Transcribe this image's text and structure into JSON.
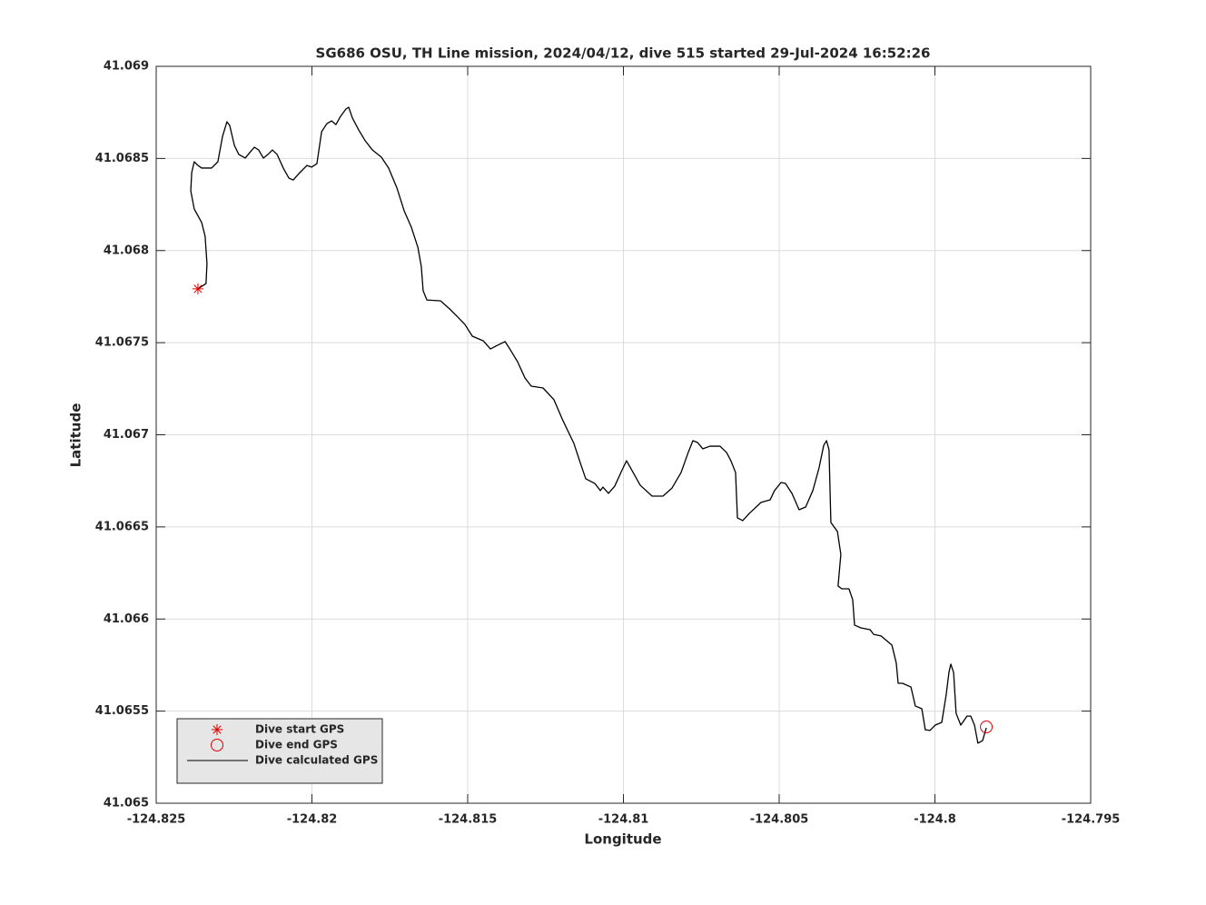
{
  "chart_data": {
    "type": "line",
    "title": "SG686 OSU, TH Line mission, 2024/04/12, dive 515 started 29-Jul-2024 16:52:26",
    "xlabel": "Longitude",
    "ylabel": "Latitude",
    "xlim": [
      -124.825,
      -124.795
    ],
    "xticks": [
      -124.825,
      -124.82,
      -124.815,
      -124.81,
      -124.805,
      -124.8,
      -124.795
    ],
    "ylim": [
      41.065,
      41.069
    ],
    "yticks": [
      41.065,
      41.0655,
      41.066,
      41.0665,
      41.067,
      41.0675,
      41.068,
      41.0685,
      41.069
    ],
    "grid": true,
    "legend": "lower left",
    "series": [
      {
        "name": "Dive start GPS",
        "color": "#e00000",
        "marker": "asterisk",
        "x": [
          -124.82366
        ],
        "values": [
          41.067792
        ]
      },
      {
        "name": "Dive end GPS",
        "color": "#e00000",
        "marker": "circle",
        "x": [
          -124.79835
        ],
        "values": [
          41.065414
        ]
      },
      {
        "name": "Dive calculated GPS",
        "color": "#000000",
        "marker": "none",
        "x": [
          -124.82366,
          -124.8234,
          -124.82337,
          -124.82343,
          -124.82354,
          -124.82378,
          -124.82389,
          -124.82386,
          -124.82378,
          -124.82366,
          -124.82354,
          -124.82322,
          -124.82302,
          -124.82287,
          -124.82273,
          -124.82264,
          -124.82249,
          -124.82235,
          -124.82214,
          -124.822,
          -124.82185,
          -124.82171,
          -124.82156,
          -124.82141,
          -124.82127,
          -124.82112,
          -124.82092,
          -124.82074,
          -124.8206,
          -124.82039,
          -124.82016,
          -124.82001,
          -124.81984,
          -124.81969,
          -124.81952,
          -124.81937,
          -124.81923,
          -124.81908,
          -124.81891,
          -124.81882,
          -124.8187,
          -124.8185,
          -124.81829,
          -124.81806,
          -124.81777,
          -124.81754,
          -124.81727,
          -124.81704,
          -124.81681,
          -124.8166,
          -124.81649,
          -124.81643,
          -124.81631,
          -124.81587,
          -124.81558,
          -124.81529,
          -124.81509,
          -124.81485,
          -124.8145,
          -124.81427,
          -124.81404,
          -124.8138,
          -124.81363,
          -124.8134,
          -124.81316,
          -124.81296,
          -124.81258,
          -124.81223,
          -124.81194,
          -124.81159,
          -124.81136,
          -124.81121,
          -124.81092,
          -124.81074,
          -124.81066,
          -124.81048,
          -124.81028,
          -124.81004,
          -124.8099,
          -124.80972,
          -124.80946,
          -124.80908,
          -124.80873,
          -124.80844,
          -124.80815,
          -124.80792,
          -124.80777,
          -124.80762,
          -124.80745,
          -124.80722,
          -124.8069,
          -124.80669,
          -124.80655,
          -124.8064,
          -124.80634,
          -124.80617,
          -124.80596,
          -124.80558,
          -124.80529,
          -124.80515,
          -124.80494,
          -124.8048,
          -124.80459,
          -124.80436,
          -124.80415,
          -124.80392,
          -124.80372,
          -124.80357,
          -124.80348,
          -124.8034,
          -124.80334,
          -124.80313,
          -124.80302,
          -124.80311,
          -124.80299,
          -124.80276,
          -124.80264,
          -124.80258,
          -124.80238,
          -124.80208,
          -124.80197,
          -124.80173,
          -124.80138,
          -124.80124,
          -124.80118,
          -124.80104,
          -124.80077,
          -124.80063,
          -124.80042,
          -124.80031,
          -124.80016,
          -124.79999,
          -124.79978,
          -124.79964,
          -124.79955,
          -124.79949,
          -124.7994,
          -124.79932,
          -124.79917,
          -124.79897,
          -124.79885,
          -124.79873,
          -124.79862,
          -124.79847,
          -124.79835
        ],
        "values": [
          41.067792,
          41.067821,
          41.06793,
          41.068078,
          41.068152,
          41.068226,
          41.068324,
          41.068423,
          41.068482,
          41.068462,
          41.068448,
          41.068448,
          41.068482,
          41.06862,
          41.068699,
          41.068679,
          41.068571,
          41.068522,
          41.068502,
          41.068531,
          41.068561,
          41.068546,
          41.068502,
          41.068522,
          41.068546,
          41.068522,
          41.068448,
          41.068393,
          41.068383,
          41.068423,
          41.068462,
          41.068453,
          41.068472,
          41.068645,
          41.068689,
          41.068704,
          41.068684,
          41.068729,
          41.068768,
          41.068778,
          41.068719,
          41.068655,
          41.068596,
          41.068546,
          41.068507,
          41.068448,
          41.068339,
          41.068216,
          41.068127,
          41.068018,
          41.067915,
          41.067782,
          41.067732,
          41.067727,
          41.067683,
          41.067634,
          41.067599,
          41.067535,
          41.06751,
          41.067466,
          41.067486,
          41.067506,
          41.067461,
          41.067397,
          41.067308,
          41.067264,
          41.067254,
          41.06719,
          41.067076,
          41.066953,
          41.066835,
          41.066761,
          41.066736,
          41.066697,
          41.066716,
          41.066682,
          41.066721,
          41.06681,
          41.066859,
          41.066805,
          41.066726,
          41.066667,
          41.066667,
          41.066711,
          41.066795,
          41.066904,
          41.066968,
          41.066958,
          41.066924,
          41.066938,
          41.066938,
          41.066904,
          41.066859,
          41.066795,
          41.066549,
          41.066534,
          41.066573,
          41.066633,
          41.066647,
          41.066697,
          41.066741,
          41.066736,
          41.066682,
          41.066593,
          41.066608,
          41.066697,
          41.06682,
          41.066943,
          41.066968,
          41.066919,
          41.066524,
          41.066475,
          41.066351,
          41.066179,
          41.066164,
          41.066164,
          41.066105,
          41.065967,
          41.065952,
          41.065942,
          41.065917,
          41.065908,
          41.065858,
          41.06576,
          41.065651,
          41.065651,
          41.065631,
          41.065528,
          41.065513,
          41.065399,
          41.065395,
          41.065424,
          41.065439,
          41.065587,
          41.06571,
          41.065755,
          41.06571,
          41.065488,
          41.065424,
          41.065473,
          41.065473,
          41.065424,
          41.065326,
          41.06534,
          41.065409
        ]
      }
    ]
  }
}
